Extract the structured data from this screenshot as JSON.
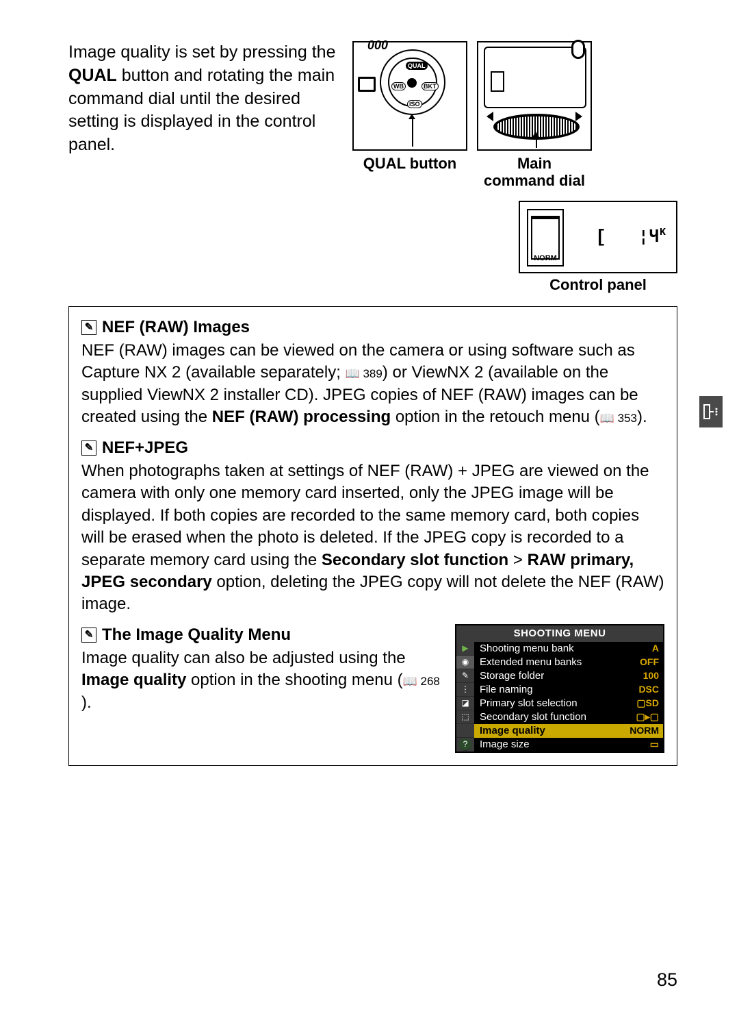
{
  "intro": {
    "text_before": "Image quality is set by pressing the ",
    "qual": "QUAL",
    "text_after": " button and rotating the main command dial until the desired setting is displayed in the control panel."
  },
  "diagram_labels": {
    "qual_button": "QUAL button",
    "main_dial_line1": "Main",
    "main_dial_line2": "command dial",
    "control_panel": "Control panel",
    "qual_small": "QUAL",
    "wb_small": "WB",
    "bkt_small": "BKT",
    "iso_small": "ISO",
    "norm_small": "NORM"
  },
  "control_panel_display": {
    "norm": "NORM",
    "bracket": "[",
    "value": "1.4",
    "k": "K",
    "bracket_close": ""
  },
  "note1": {
    "heading": "NEF (RAW) Images",
    "t1": "NEF (RAW) images can be viewed on the camera or using software such as Capture NX 2 (available separately; ",
    "ref1": "389",
    "t2": ") or ViewNX 2 (available on the supplied ViewNX 2 installer CD).  JPEG copies of NEF (RAW) images can be created using the ",
    "bold1": "NEF (RAW) processing",
    "t3": " option in the retouch menu (",
    "ref2": "353",
    "t4": ")."
  },
  "note2": {
    "heading": "NEF+JPEG",
    "t1": "When photographs taken at settings of NEF (RAW) + JPEG are viewed on the camera with only one memory card inserted, only the JPEG image will be displayed.  If both copies are recorded to the same memory card, both copies will be erased when the photo is deleted.  If the JPEG copy is recorded to a separate memory card using the ",
    "bold1": "Secondary slot function",
    "sep": " > ",
    "bold2": "RAW primary, JPEG secondary",
    "t2": " option, deleting the JPEG copy will not delete the NEF (RAW) image."
  },
  "note3": {
    "heading": "The Image Quality Menu",
    "t1": "Image quality can also be adjusted using the ",
    "bold1": "Image quality",
    "t2": " option in the shooting menu (",
    "ref1": "268",
    "t3": ")."
  },
  "shooting_menu": {
    "title": "SHOOTING MENU",
    "rows": [
      {
        "label": "Shooting menu bank",
        "val": "A"
      },
      {
        "label": "Extended menu banks",
        "val": "OFF"
      },
      {
        "label": "Storage folder",
        "val": "100"
      },
      {
        "label": "File naming",
        "val": "DSC"
      },
      {
        "label": "Primary slot selection",
        "val": "▢SD"
      },
      {
        "label": "Secondary slot function",
        "val": "▢▸▢"
      },
      {
        "label": "Image quality",
        "val": "NORM",
        "highlight": true
      },
      {
        "label": "Image size",
        "val": "▭"
      }
    ],
    "icons": [
      "▶",
      "◉",
      "✎",
      "⋮",
      "◪",
      "⬚",
      "",
      "?"
    ]
  },
  "page_number": "85",
  "colors": {
    "page_bg": "#ffffff",
    "text": "#000000",
    "menu_bg": "#000000",
    "menu_header_bg": "#3b3b3b",
    "menu_val": "#d9a800",
    "menu_highlight": "#c9a800",
    "sidetab_bg": "#4a4a4a",
    "icon_green": "#6fb54a"
  }
}
